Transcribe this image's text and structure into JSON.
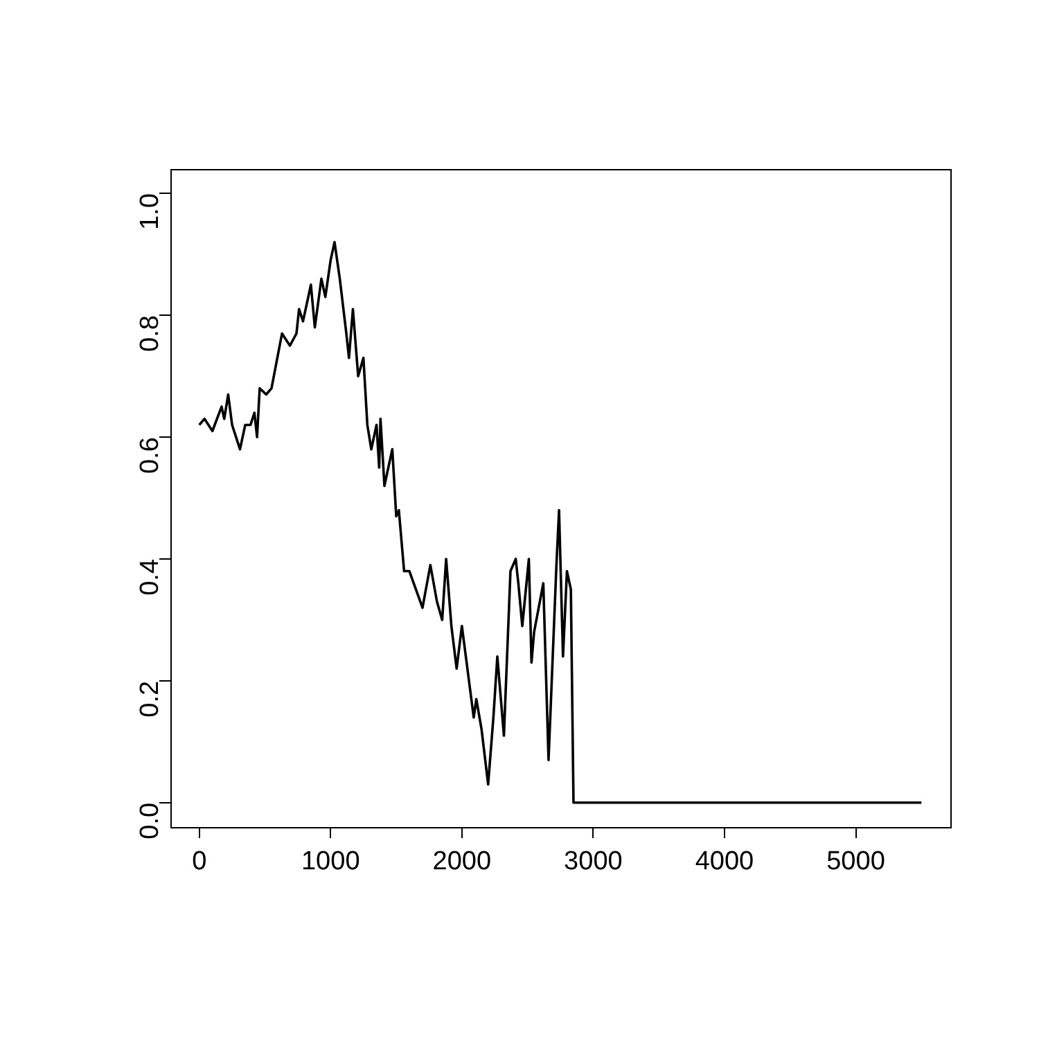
{
  "chart_data": {
    "type": "line",
    "x": [
      0,
      40,
      100,
      170,
      190,
      220,
      250,
      310,
      350,
      390,
      420,
      440,
      460,
      510,
      550,
      630,
      690,
      740,
      760,
      790,
      850,
      880,
      930,
      960,
      1000,
      1030,
      1070,
      1120,
      1140,
      1170,
      1210,
      1250,
      1280,
      1310,
      1350,
      1370,
      1380,
      1410,
      1450,
      1470,
      1500,
      1520,
      1560,
      1600,
      1700,
      1760,
      1810,
      1850,
      1880,
      1920,
      1960,
      2000,
      2090,
      2110,
      2150,
      2200,
      2240,
      2270,
      2320,
      2370,
      2410,
      2430,
      2460,
      2510,
      2530,
      2550,
      2620,
      2660,
      2720,
      2740,
      2770,
      2800,
      2830,
      2850,
      5500
    ],
    "series": [
      {
        "color": "#000000",
        "values": [
          0.62,
          0.63,
          0.61,
          0.65,
          0.63,
          0.67,
          0.62,
          0.58,
          0.62,
          0.62,
          0.64,
          0.6,
          0.68,
          0.67,
          0.68,
          0.77,
          0.75,
          0.77,
          0.81,
          0.79,
          0.85,
          0.78,
          0.86,
          0.83,
          0.89,
          0.92,
          0.86,
          0.77,
          0.73,
          0.81,
          0.7,
          0.73,
          0.62,
          0.58,
          0.62,
          0.55,
          0.63,
          0.52,
          0.56,
          0.58,
          0.47,
          0.48,
          0.38,
          0.38,
          0.32,
          0.39,
          0.33,
          0.3,
          0.4,
          0.29,
          0.22,
          0.29,
          0.14,
          0.17,
          0.12,
          0.03,
          0.14,
          0.24,
          0.11,
          0.38,
          0.4,
          0.36,
          0.29,
          0.4,
          0.23,
          0.28,
          0.36,
          0.07,
          0.39,
          0.48,
          0.24,
          0.38,
          0.35,
          0,
          0
        ]
      }
    ],
    "xlim": [
      -220,
      5720
    ],
    "ylim": [
      -0.04,
      1.04
    ],
    "xticks": [
      0,
      1000,
      2000,
      3000,
      4000,
      5000
    ],
    "yticks": [
      {
        "value": 0,
        "label": "0.0"
      },
      0.2,
      0.4,
      0.6,
      0.8,
      {
        "value": 1,
        "label": "1.0"
      }
    ],
    "grid": false,
    "legend": false,
    "marker": "none",
    "line_style": "solid"
  }
}
